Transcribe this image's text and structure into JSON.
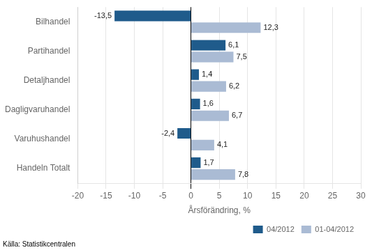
{
  "chart_data": {
    "type": "bar",
    "orientation": "horizontal",
    "categories": [
      "Handeln Totalt",
      "Varuhushandel",
      "Dagligvaruhandel",
      "Detaljhandel",
      "Partihandel",
      "Bilhandel"
    ],
    "series": [
      {
        "name": "04/2012",
        "color": "#1F5B8B",
        "values": [
          1.7,
          -2.4,
          1.6,
          1.4,
          6.1,
          -13.5
        ],
        "value_labels": [
          "1,7",
          "-2,4",
          "1,6",
          "1,4",
          "6,1",
          "-13,5"
        ]
      },
      {
        "name": "01-04/2012",
        "color": "#AABBD4",
        "values": [
          7.8,
          4.1,
          6.7,
          6.2,
          7.5,
          12.3
        ],
        "value_labels": [
          "7,8",
          "4,1",
          "6,7",
          "6,2",
          "7,5",
          "12,3"
        ]
      }
    ],
    "xlabel": "Årsförändring, %",
    "annotations": [
      "Källa: Statistikcentralen"
    ],
    "xlim": [
      -20,
      30
    ],
    "xticks": [
      -20,
      -15,
      -10,
      -5,
      0,
      5,
      10,
      15,
      20,
      25,
      30
    ],
    "grid": true,
    "legend": "lower right",
    "data_labels": true
  }
}
